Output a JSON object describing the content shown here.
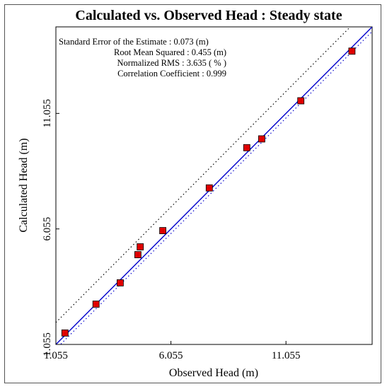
{
  "chart_data": {
    "type": "scatter",
    "title": "Calculated vs. Observed Head : Steady state",
    "xlabel": "Observed Head (m)",
    "ylabel": "Calculated Head (m)",
    "xlim": [
      1.055,
      14.8
    ],
    "ylim": [
      1.055,
      14.8
    ],
    "xticks": [
      "1.055",
      "6.055",
      "11.055"
    ],
    "yticks": [
      "1.055",
      "6.055",
      "11.055"
    ],
    "xtick_values": [
      1.055,
      6.055,
      11.055
    ],
    "ytick_values": [
      1.055,
      6.055,
      11.055
    ],
    "stats": [
      "Standard Error of the Estimate : 0.073 (m)",
      "Root Mean Squared : 0.455 (m)",
      "Normalized RMS : 3.635 ( % )",
      "Correlation Coefficient : 0.999"
    ],
    "points": [
      {
        "x": 1.45,
        "y": 1.55
      },
      {
        "x": 2.8,
        "y": 2.8
      },
      {
        "x": 3.85,
        "y": 3.72
      },
      {
        "x": 4.62,
        "y": 4.94
      },
      {
        "x": 4.72,
        "y": 5.28
      },
      {
        "x": 5.7,
        "y": 5.98
      },
      {
        "x": 7.72,
        "y": 7.83
      },
      {
        "x": 9.35,
        "y": 9.57
      },
      {
        "x": 10.0,
        "y": 9.95
      },
      {
        "x": 11.7,
        "y": 11.6
      },
      {
        "x": 13.92,
        "y": 13.75
      }
    ],
    "marker_color": "#e00000",
    "marker_edge": "#000000",
    "identity_line_color": "#0000cc",
    "confidence_lines": [
      {
        "style": "dotted",
        "color": "#000000",
        "offset": 0.95
      },
      {
        "style": "dotted",
        "color": "#0000cc",
        "offset": -0.2
      }
    ],
    "grid": false
  }
}
